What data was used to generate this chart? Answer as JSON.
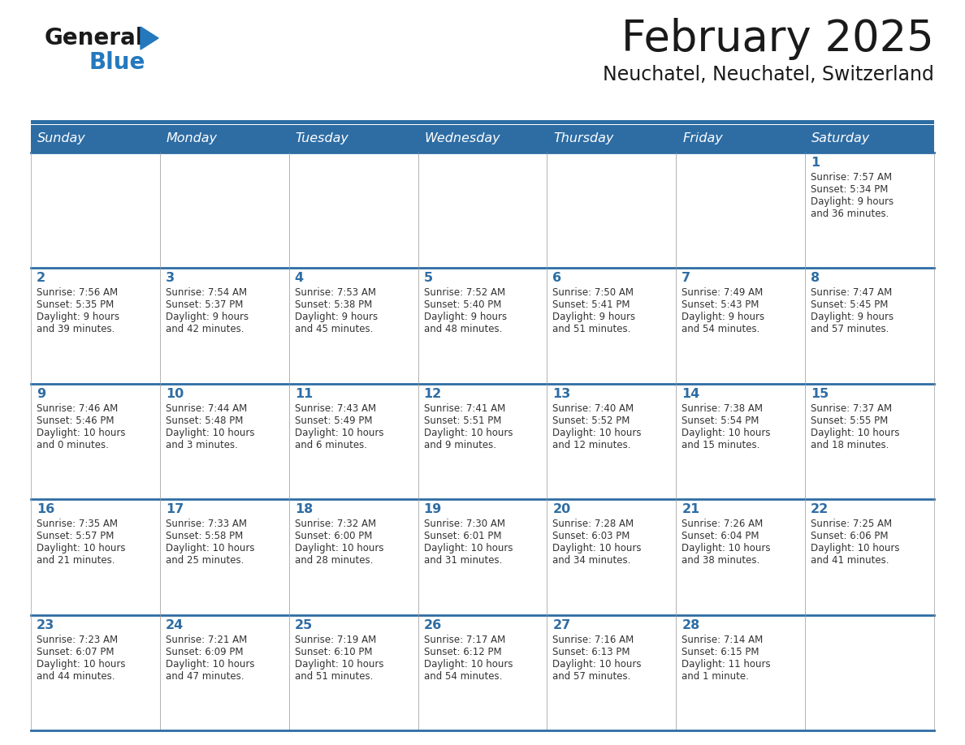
{
  "title": "February 2025",
  "subtitle": "Neuchatel, Neuchatel, Switzerland",
  "header_bg": "#2E6DA4",
  "header_text": "#FFFFFF",
  "cell_bg": "#FFFFFF",
  "day_headers": [
    "Sunday",
    "Monday",
    "Tuesday",
    "Wednesday",
    "Thursday",
    "Friday",
    "Saturday"
  ],
  "title_color": "#1a1a1a",
  "subtitle_color": "#1a1a1a",
  "day_num_color": "#2E6DA4",
  "cell_text_color": "#333333",
  "divider_color": "#2E6DA4",
  "border_color": "#AAAAAA",
  "calendar": [
    [
      null,
      null,
      null,
      null,
      null,
      null,
      {
        "day": "1",
        "sunrise": "7:57 AM",
        "sunset": "5:34 PM",
        "daylight_line1": "9 hours",
        "daylight_line2": "and 36 minutes."
      }
    ],
    [
      {
        "day": "2",
        "sunrise": "7:56 AM",
        "sunset": "5:35 PM",
        "daylight_line1": "9 hours",
        "daylight_line2": "and 39 minutes."
      },
      {
        "day": "3",
        "sunrise": "7:54 AM",
        "sunset": "5:37 PM",
        "daylight_line1": "9 hours",
        "daylight_line2": "and 42 minutes."
      },
      {
        "day": "4",
        "sunrise": "7:53 AM",
        "sunset": "5:38 PM",
        "daylight_line1": "9 hours",
        "daylight_line2": "and 45 minutes."
      },
      {
        "day": "5",
        "sunrise": "7:52 AM",
        "sunset": "5:40 PM",
        "daylight_line1": "9 hours",
        "daylight_line2": "and 48 minutes."
      },
      {
        "day": "6",
        "sunrise": "7:50 AM",
        "sunset": "5:41 PM",
        "daylight_line1": "9 hours",
        "daylight_line2": "and 51 minutes."
      },
      {
        "day": "7",
        "sunrise": "7:49 AM",
        "sunset": "5:43 PM",
        "daylight_line1": "9 hours",
        "daylight_line2": "and 54 minutes."
      },
      {
        "day": "8",
        "sunrise": "7:47 AM",
        "sunset": "5:45 PM",
        "daylight_line1": "9 hours",
        "daylight_line2": "and 57 minutes."
      }
    ],
    [
      {
        "day": "9",
        "sunrise": "7:46 AM",
        "sunset": "5:46 PM",
        "daylight_line1": "10 hours",
        "daylight_line2": "and 0 minutes."
      },
      {
        "day": "10",
        "sunrise": "7:44 AM",
        "sunset": "5:48 PM",
        "daylight_line1": "10 hours",
        "daylight_line2": "and 3 minutes."
      },
      {
        "day": "11",
        "sunrise": "7:43 AM",
        "sunset": "5:49 PM",
        "daylight_line1": "10 hours",
        "daylight_line2": "and 6 minutes."
      },
      {
        "day": "12",
        "sunrise": "7:41 AM",
        "sunset": "5:51 PM",
        "daylight_line1": "10 hours",
        "daylight_line2": "and 9 minutes."
      },
      {
        "day": "13",
        "sunrise": "7:40 AM",
        "sunset": "5:52 PM",
        "daylight_line1": "10 hours",
        "daylight_line2": "and 12 minutes."
      },
      {
        "day": "14",
        "sunrise": "7:38 AM",
        "sunset": "5:54 PM",
        "daylight_line1": "10 hours",
        "daylight_line2": "and 15 minutes."
      },
      {
        "day": "15",
        "sunrise": "7:37 AM",
        "sunset": "5:55 PM",
        "daylight_line1": "10 hours",
        "daylight_line2": "and 18 minutes."
      }
    ],
    [
      {
        "day": "16",
        "sunrise": "7:35 AM",
        "sunset": "5:57 PM",
        "daylight_line1": "10 hours",
        "daylight_line2": "and 21 minutes."
      },
      {
        "day": "17",
        "sunrise": "7:33 AM",
        "sunset": "5:58 PM",
        "daylight_line1": "10 hours",
        "daylight_line2": "and 25 minutes."
      },
      {
        "day": "18",
        "sunrise": "7:32 AM",
        "sunset": "6:00 PM",
        "daylight_line1": "10 hours",
        "daylight_line2": "and 28 minutes."
      },
      {
        "day": "19",
        "sunrise": "7:30 AM",
        "sunset": "6:01 PM",
        "daylight_line1": "10 hours",
        "daylight_line2": "and 31 minutes."
      },
      {
        "day": "20",
        "sunrise": "7:28 AM",
        "sunset": "6:03 PM",
        "daylight_line1": "10 hours",
        "daylight_line2": "and 34 minutes."
      },
      {
        "day": "21",
        "sunrise": "7:26 AM",
        "sunset": "6:04 PM",
        "daylight_line1": "10 hours",
        "daylight_line2": "and 38 minutes."
      },
      {
        "day": "22",
        "sunrise": "7:25 AM",
        "sunset": "6:06 PM",
        "daylight_line1": "10 hours",
        "daylight_line2": "and 41 minutes."
      }
    ],
    [
      {
        "day": "23",
        "sunrise": "7:23 AM",
        "sunset": "6:07 PM",
        "daylight_line1": "10 hours",
        "daylight_line2": "and 44 minutes."
      },
      {
        "day": "24",
        "sunrise": "7:21 AM",
        "sunset": "6:09 PM",
        "daylight_line1": "10 hours",
        "daylight_line2": "and 47 minutes."
      },
      {
        "day": "25",
        "sunrise": "7:19 AM",
        "sunset": "6:10 PM",
        "daylight_line1": "10 hours",
        "daylight_line2": "and 51 minutes."
      },
      {
        "day": "26",
        "sunrise": "7:17 AM",
        "sunset": "6:12 PM",
        "daylight_line1": "10 hours",
        "daylight_line2": "and 54 minutes."
      },
      {
        "day": "27",
        "sunrise": "7:16 AM",
        "sunset": "6:13 PM",
        "daylight_line1": "10 hours",
        "daylight_line2": "and 57 minutes."
      },
      {
        "day": "28",
        "sunrise": "7:14 AM",
        "sunset": "6:15 PM",
        "daylight_line1": "11 hours",
        "daylight_line2": "and 1 minute."
      },
      null
    ]
  ],
  "logo_general_color": "#1a1a1a",
  "logo_blue_color": "#2479BE",
  "logo_triangle_color": "#2479BE",
  "fig_width": 11.88,
  "fig_height": 9.18,
  "dpi": 100
}
